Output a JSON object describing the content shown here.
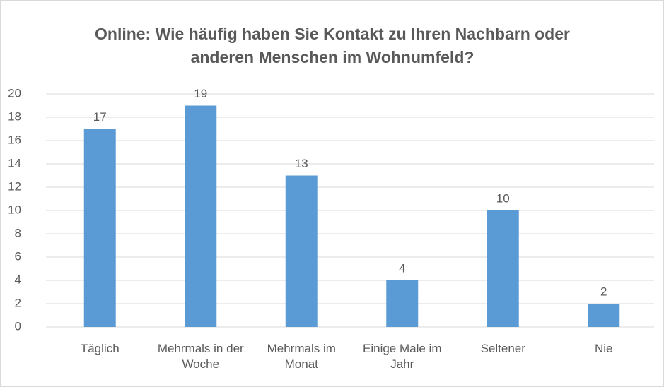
{
  "chart_data": {
    "type": "bar",
    "title": "Online: Wie häufig haben Sie Kontakt zu Ihren Nachbarn oder anderen Menschen im Wohnumfeld?",
    "categories": [
      "Täglich",
      "Mehrmals in der Woche",
      "Mehrmals im Monat",
      "Einige Male im Jahr",
      "Seltener",
      "Nie"
    ],
    "values": [
      17,
      19,
      13,
      4,
      10,
      2
    ],
    "color": "#5b9bd5",
    "ylim": [
      0,
      20
    ],
    "yticks": [
      0,
      2,
      4,
      6,
      8,
      10,
      12,
      14,
      16,
      18,
      20
    ],
    "grid": true
  }
}
